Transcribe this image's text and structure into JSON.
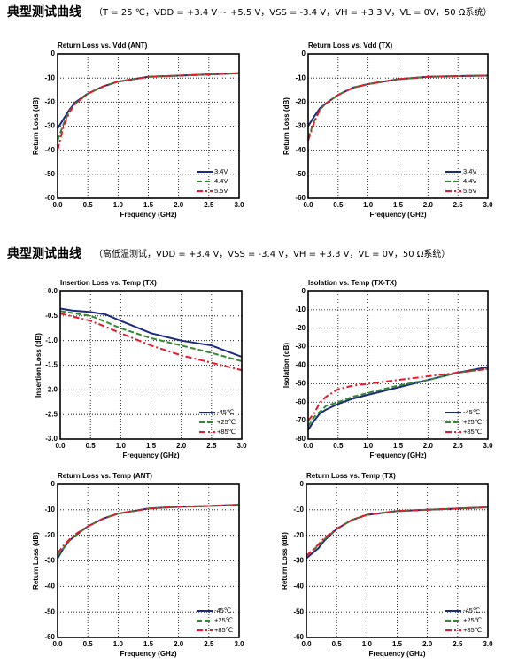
{
  "headings": [
    {
      "title": "典型测试曲线",
      "conditions": "（T = 25 ℃，VDD = +3.4 V ~ +5.5 V，VSS = -3.4 V，VH = +3.3 V，VL = 0V，50 Ω系统）"
    },
    {
      "title": "典型测试曲线",
      "conditions": "（高低温测试，VDD = +3.4 V，VSS = -3.4 V，VH = +3.3 V，VL = 0V，50 Ω系统）"
    }
  ],
  "chart_data": [
    {
      "type": "line",
      "title": "Return Loss vs. Vdd  (ANT)",
      "xlabel": "Frequency  (GHz)",
      "ylabel": "Return Loss  (dB)",
      "x": [
        0,
        0.1,
        0.2,
        0.3,
        0.5,
        0.75,
        1.0,
        1.5,
        2.0,
        2.5,
        3.0
      ],
      "xlim": [
        0,
        3
      ],
      "xticks": [
        {
          "value": 0,
          "label": "0.0"
        },
        0.5,
        {
          "value": 1,
          "label": "1.0"
        },
        1.5,
        {
          "value": 2,
          "label": "2.0"
        },
        2.5,
        {
          "value": 3,
          "label": "3.0"
        }
      ],
      "ylim": [
        -60,
        0
      ],
      "yticks": [
        0,
        -10,
        -20,
        -30,
        -40,
        -50,
        -60
      ],
      "grid": true,
      "legend": "lower right",
      "series": [
        {
          "name": "3.4V",
          "color": "#1a2a80",
          "dash": "solid",
          "values": [
            -31,
            -27,
            -23,
            -20,
            -16.5,
            -13.5,
            -11.5,
            -9.5,
            -9,
            -8.5,
            -8
          ]
        },
        {
          "name": "4.4V",
          "color": "#2e8b2e",
          "dash": "dashed",
          "values": [
            -36,
            -29,
            -23.5,
            -20.5,
            -16.5,
            -13.5,
            -11.5,
            -9.5,
            -9,
            -8.5,
            -8
          ]
        },
        {
          "name": "5.5V",
          "color": "#e8192c",
          "dash": "dashdot",
          "values": [
            -40,
            -30,
            -24,
            -20.5,
            -16.5,
            -13.5,
            -11.5,
            -9.5,
            -9,
            -8.5,
            -8
          ]
        }
      ]
    },
    {
      "type": "line",
      "title": "Return Loss vs. Vdd  (TX)",
      "xlabel": "Frequency  (GHz)",
      "ylabel": "Return Loss  (dB)",
      "x": [
        0,
        0.1,
        0.2,
        0.3,
        0.5,
        0.75,
        1.0,
        1.5,
        2.0,
        2.5,
        3.0
      ],
      "xlim": [
        0,
        3
      ],
      "xticks": [
        {
          "value": 0,
          "label": "0.0"
        },
        0.5,
        {
          "value": 1,
          "label": "1.0"
        },
        1.5,
        {
          "value": 2,
          "label": "2.0"
        },
        2.5,
        {
          "value": 3,
          "label": "3.0"
        }
      ],
      "ylim": [
        -60,
        0
      ],
      "yticks": [
        0,
        -10,
        -20,
        -30,
        -40,
        -50,
        -60
      ],
      "grid": true,
      "legend": "lower right",
      "series": [
        {
          "name": "3.4V",
          "color": "#1a2a80",
          "dash": "solid",
          "values": [
            -30,
            -26,
            -22.5,
            -20.5,
            -17,
            -14,
            -12.5,
            -10.5,
            -9.5,
            -9.2,
            -9
          ]
        },
        {
          "name": "4.4V",
          "color": "#2e8b2e",
          "dash": "dashed",
          "values": [
            -35,
            -28,
            -23,
            -20.5,
            -17,
            -14,
            -12.5,
            -10.5,
            -9.5,
            -9.2,
            -9
          ]
        },
        {
          "name": "5.5V",
          "color": "#e8192c",
          "dash": "dashdot",
          "values": [
            -36,
            -28.5,
            -23,
            -20.5,
            -17,
            -14,
            -12.5,
            -10.5,
            -9.5,
            -9.2,
            -9
          ]
        }
      ]
    },
    {
      "type": "line",
      "title": "Insertion Loss vs. Temp  (TX)",
      "xlabel": "Frequency  (GHz)",
      "ylabel": "Insertion Loss  (dB)",
      "x": [
        0,
        0.1,
        0.2,
        0.3,
        0.5,
        0.75,
        1.0,
        1.5,
        2.0,
        2.5,
        3.0
      ],
      "xlim": [
        0,
        3
      ],
      "xticks": [
        {
          "value": 0,
          "label": "0.0"
        },
        0.5,
        {
          "value": 1,
          "label": "1.0"
        },
        1.5,
        {
          "value": 2,
          "label": "2.0"
        },
        2.5,
        {
          "value": 3,
          "label": "3.0"
        }
      ],
      "ylim": [
        -3,
        0
      ],
      "yticks": [
        {
          "value": 0,
          "label": "0.0"
        },
        -0.5,
        {
          "value": -1,
          "label": "-1.0"
        },
        -1.5,
        {
          "value": -2,
          "label": "-2.0"
        },
        -2.5,
        {
          "value": -3,
          "label": "-3.0"
        }
      ],
      "grid": true,
      "legend": "lower right",
      "series": [
        {
          "name": "-45℃",
          "color": "#1a2a80",
          "dash": "solid",
          "values": [
            -0.35,
            -0.37,
            -0.39,
            -0.4,
            -0.42,
            -0.47,
            -0.6,
            -0.85,
            -1.0,
            -1.1,
            -1.33
          ]
        },
        {
          "name": "+25℃",
          "color": "#2e8b2e",
          "dash": "dashed",
          "values": [
            -0.4,
            -0.42,
            -0.44,
            -0.46,
            -0.5,
            -0.62,
            -0.75,
            -0.95,
            -1.1,
            -1.25,
            -1.42
          ]
        },
        {
          "name": "+85℃",
          "color": "#e8192c",
          "dash": "dashdot",
          "values": [
            -0.45,
            -0.48,
            -0.51,
            -0.54,
            -0.6,
            -0.72,
            -0.85,
            -1.1,
            -1.3,
            -1.45,
            -1.6
          ]
        }
      ]
    },
    {
      "type": "line",
      "title": "Isolation vs. Temp  (TX-TX)",
      "xlabel": "Frequency  (GHz)",
      "ylabel": "Isolation  (dB)",
      "x": [
        0,
        0.1,
        0.2,
        0.3,
        0.5,
        0.75,
        1.0,
        1.5,
        2.0,
        2.5,
        3.0
      ],
      "xlim": [
        0,
        3
      ],
      "xticks": [
        {
          "value": 0,
          "label": "0.0"
        },
        0.5,
        {
          "value": 1,
          "label": "1.0"
        },
        1.5,
        {
          "value": 2,
          "label": "2.0"
        },
        2.5,
        {
          "value": 3,
          "label": "3.0"
        }
      ],
      "ylim": [
        -80,
        0
      ],
      "yticks": [
        0,
        -10,
        -20,
        -30,
        -40,
        -50,
        -60,
        -70,
        -80
      ],
      "grid": true,
      "legend": "lower right",
      "series": [
        {
          "name": "-45℃",
          "color": "#1a2a80",
          "dash": "solid",
          "values": [
            -75,
            -70,
            -66,
            -64,
            -61,
            -58,
            -56,
            -52,
            -48,
            -44,
            -41
          ]
        },
        {
          "name": "+25℃",
          "color": "#2e8b2e",
          "dash": "dashed",
          "values": [
            -73,
            -68,
            -65,
            -62,
            -60,
            -57,
            -55,
            -51,
            -48,
            -44,
            -42
          ]
        },
        {
          "name": "+85℃",
          "color": "#e8192c",
          "dash": "dashdot",
          "values": [
            -70,
            -66,
            -60,
            -57,
            -53,
            -51,
            -50,
            -48,
            -46,
            -44,
            -42
          ]
        }
      ]
    },
    {
      "type": "line",
      "title": "Return Loss vs. Temp  (ANT)",
      "xlabel": "Frequency  (GHz)",
      "ylabel": "Return Loss  (dB)",
      "x": [
        0,
        0.1,
        0.2,
        0.3,
        0.5,
        0.75,
        1.0,
        1.5,
        2.0,
        2.5,
        3.0
      ],
      "xlim": [
        0,
        3
      ],
      "xticks": [
        {
          "value": 0,
          "label": "0.0"
        },
        0.5,
        {
          "value": 1,
          "label": "1.0"
        },
        1.5,
        {
          "value": 2,
          "label": "2.0"
        },
        2.5,
        {
          "value": 3,
          "label": "3.0"
        }
      ],
      "ylim": [
        -60,
        0
      ],
      "yticks": [
        0,
        -10,
        -20,
        -30,
        -40,
        -50,
        -60
      ],
      "grid": true,
      "legend": "lower right",
      "series": [
        {
          "name": "-45℃",
          "color": "#1a2a80",
          "dash": "solid",
          "values": [
            -29,
            -25,
            -22,
            -20,
            -16.5,
            -13.5,
            -11.5,
            -9.5,
            -8.8,
            -8.5,
            -8
          ]
        },
        {
          "name": "+25℃",
          "color": "#2e8b2e",
          "dash": "dashed",
          "values": [
            -28,
            -25,
            -22,
            -20,
            -16.5,
            -13.5,
            -11.5,
            -9.5,
            -8.8,
            -8.5,
            -8
          ]
        },
        {
          "name": "+85℃",
          "color": "#e8192c",
          "dash": "dashdot",
          "values": [
            -27,
            -24,
            -21.5,
            -19.5,
            -16.5,
            -13.5,
            -11.5,
            -9.5,
            -8.8,
            -8.5,
            -8
          ]
        }
      ]
    },
    {
      "type": "line",
      "title": "Return Loss vs. Temp  (TX)",
      "xlabel": "Frequency  (GHz)",
      "ylabel": "Return Loss  (dB)",
      "x": [
        0,
        0.1,
        0.2,
        0.3,
        0.5,
        0.75,
        1.0,
        1.5,
        2.0,
        2.5,
        3.0
      ],
      "xlim": [
        0,
        3
      ],
      "xticks": [
        {
          "value": 0,
          "label": "0.0"
        },
        0.5,
        {
          "value": 1,
          "label": "1.0"
        },
        1.5,
        {
          "value": 2,
          "label": "2.0"
        },
        2.5,
        {
          "value": 3,
          "label": "3.0"
        }
      ],
      "ylim": [
        -60,
        0
      ],
      "yticks": [
        0,
        -10,
        -20,
        -30,
        -40,
        -50,
        -60
      ],
      "grid": true,
      "legend": "lower right",
      "series": [
        {
          "name": "-45℃",
          "color": "#1a2a80",
          "dash": "solid",
          "values": [
            -29,
            -27,
            -25,
            -22,
            -17.5,
            -14,
            -12,
            -10.5,
            -10,
            -9.5,
            -9
          ]
        },
        {
          "name": "+25℃",
          "color": "#2e8b2e",
          "dash": "dashed",
          "values": [
            -28,
            -26,
            -24,
            -21.5,
            -17.5,
            -14,
            -12,
            -10.5,
            -10,
            -9.5,
            -9
          ]
        },
        {
          "name": "+85℃",
          "color": "#e8192c",
          "dash": "dashdot",
          "values": [
            -28,
            -26,
            -23.5,
            -21,
            -17.5,
            -14,
            -12,
            -10.5,
            -10,
            -9.5,
            -9
          ]
        }
      ]
    }
  ]
}
